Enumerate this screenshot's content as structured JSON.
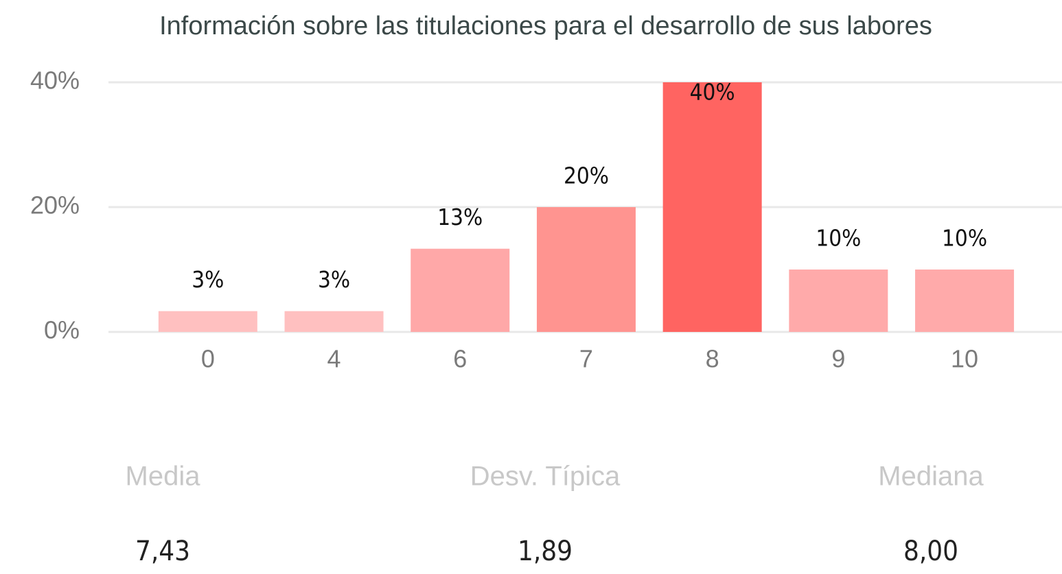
{
  "chart_data": {
    "type": "bar",
    "title": "Información sobre las titulaciones para el desarrollo de sus labores",
    "categories": [
      "0",
      "4",
      "6",
      "7",
      "8",
      "9",
      "10"
    ],
    "values": [
      3.33,
      3.33,
      13.33,
      20,
      40,
      10,
      10
    ],
    "value_labels": [
      "3%",
      "3%",
      "13%",
      "20%",
      "40%",
      "10%",
      "10%"
    ],
    "colors": [
      "#ffc0c0",
      "#ffc0c0",
      "#ffa8a8",
      "#ff9490",
      "#ff6461",
      "#ffaaaa",
      "#ffaaaa"
    ],
    "ylim": [
      0,
      40
    ],
    "yticks": [
      {
        "value": 0,
        "label": "0%"
      },
      {
        "value": 20,
        "label": "20%"
      },
      {
        "value": 40,
        "label": "40%"
      }
    ],
    "grid": true
  },
  "stats": [
    {
      "label": "Media",
      "value": "7,43"
    },
    {
      "label": "Desv. Típica",
      "value": "1,89"
    },
    {
      "label": "Mediana",
      "value": "8,00"
    }
  ]
}
